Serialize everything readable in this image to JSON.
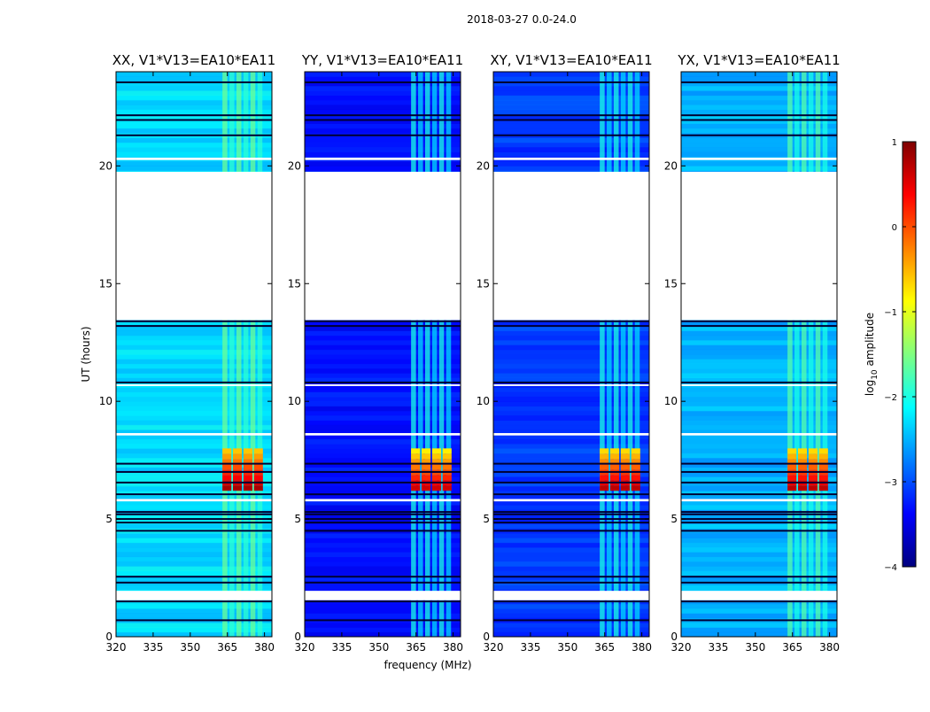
{
  "chart_data": {
    "type": "heatmap",
    "suptitle": "2018-03-27 0.0-24.0",
    "xlabel": "frequency (MHz)",
    "ylabel": "UT (hours)",
    "xlim": [
      320,
      383
    ],
    "ylim": [
      0,
      24
    ],
    "xticks": [
      "320",
      "335",
      "350",
      "365",
      "380"
    ],
    "yticks": [
      "0",
      "5",
      "10",
      "15",
      "20"
    ],
    "colorbar": {
      "label_prefix": "log",
      "label_sub": "10",
      "label_suffix": " amplitude",
      "range": [
        -4,
        1
      ],
      "ticks": [
        "1",
        "0",
        "−1",
        "−2",
        "−3",
        "−4"
      ],
      "colormap": "jet",
      "colors": [
        "#00007f",
        "#0000ff",
        "#0080ff",
        "#00ffff",
        "#80ff80",
        "#ffff00",
        "#ff8000",
        "#ff0000",
        "#7f0000"
      ]
    },
    "rfi_band_mhz": [
      363,
      380
    ],
    "panels": [
      {
        "title": "XX, V1*V13=EA10*EA11",
        "background_log_amp": -2.3,
        "rfi_log_amp": -1.6,
        "burst_log_amp": 0.2,
        "burst_hours": [
          6.2,
          8.0
        ]
      },
      {
        "title": "YY, V1*V13=EA10*EA11",
        "background_log_amp": -3.3,
        "rfi_log_amp": -2.0,
        "burst_log_amp": 0.0,
        "burst_hours": [
          6.2,
          8.0
        ]
      },
      {
        "title": "XY, V1*V13=EA10*EA11",
        "background_log_amp": -3.1,
        "rfi_log_amp": -2.0,
        "burst_log_amp": 0.1,
        "burst_hours": [
          6.2,
          8.0
        ]
      },
      {
        "title": "YX, V1*V13=EA10*EA11",
        "background_log_amp": -2.5,
        "rfi_log_amp": -1.7,
        "burst_log_amp": 0.1,
        "burst_hours": [
          6.2,
          8.0
        ]
      }
    ],
    "gaps_hours": [
      [
        13.45,
        19.75
      ],
      [
        20.25,
        20.35
      ],
      [
        1.55,
        1.95
      ],
      [
        5.75,
        5.85
      ],
      [
        8.55,
        8.65
      ],
      [
        10.65,
        10.72
      ]
    ],
    "dark_lines_hours": [
      0.7,
      1.5,
      2.3,
      2.55,
      4.5,
      4.85,
      5.0,
      5.2,
      5.3,
      6.05,
      6.55,
      7.0,
      7.35,
      10.8,
      13.2,
      13.4,
      21.3,
      21.95,
      22.15,
      23.55
    ]
  }
}
